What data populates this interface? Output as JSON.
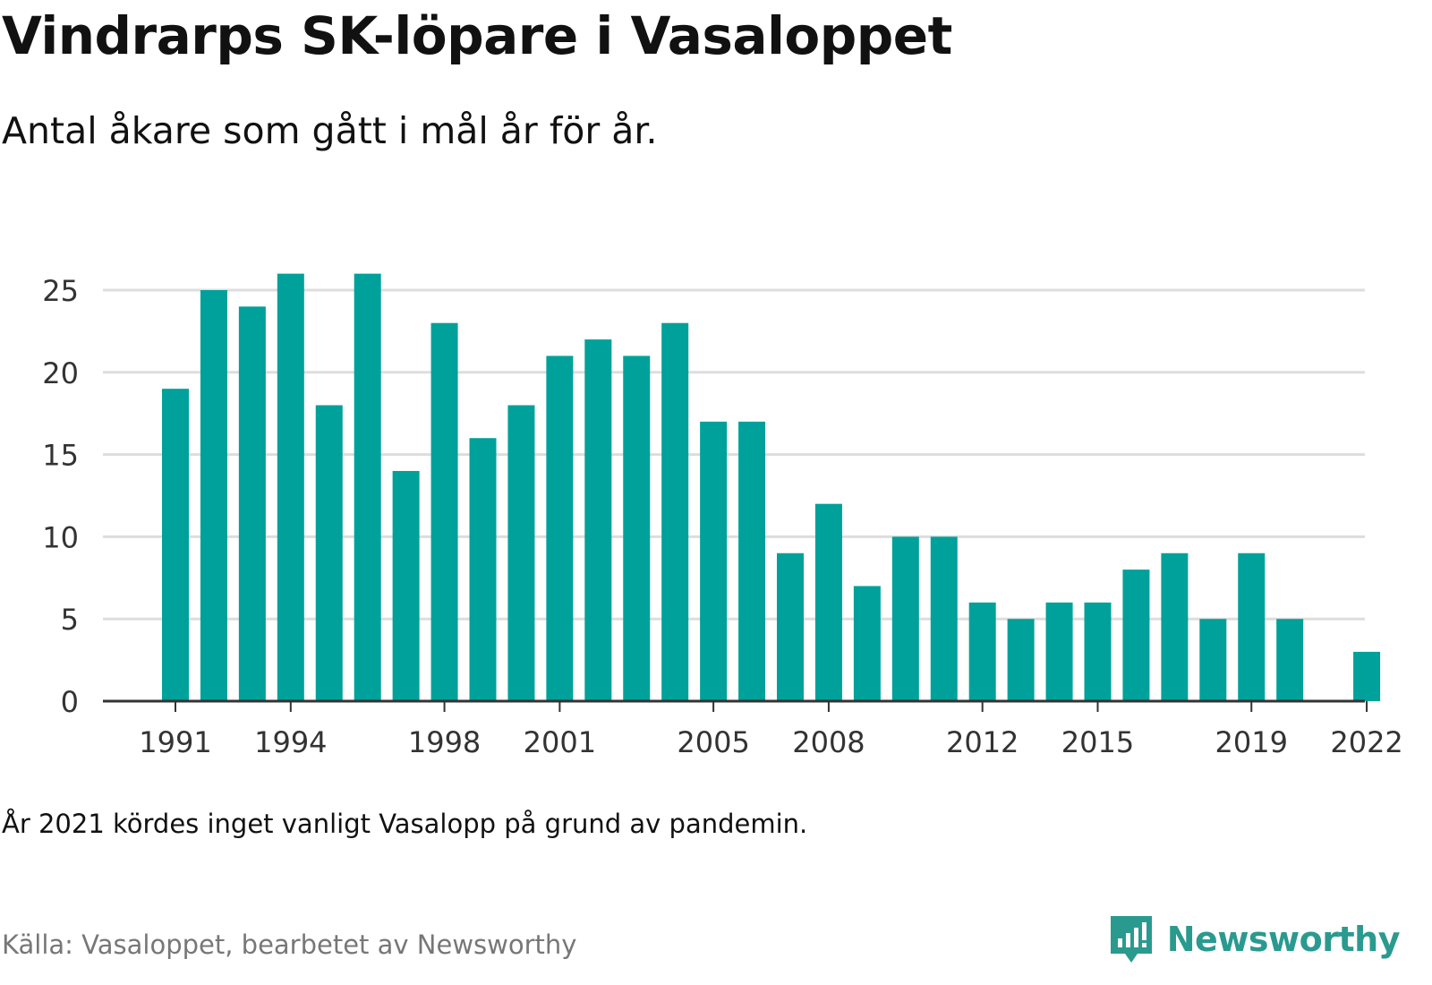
{
  "title": "Vindrarps SK-löpare i Vasaloppet",
  "subtitle": "Antal åkare som gått i mål år för år.",
  "note": "År 2021 kördes inget vanligt Vasalopp på grund av pandemin.",
  "source": "Källa: Vasaloppet, bearbetet av Newsworthy",
  "brand": {
    "name": "Newsworthy",
    "icon": "newsworthy-logo-icon",
    "color": "#2a9a8f"
  },
  "chart_data": {
    "type": "bar",
    "title": "",
    "xlabel": "",
    "ylabel": "",
    "categories": [
      "1991",
      "1992",
      "1993",
      "1994",
      "1995",
      "1996",
      "1997",
      "1998",
      "1999",
      "2000",
      "2001",
      "2002",
      "2003",
      "2004",
      "2005",
      "2006",
      "2007",
      "2008",
      "2009",
      "2010",
      "2011",
      "2012",
      "2013",
      "2014",
      "2015",
      "2016",
      "2017",
      "2018",
      "2019",
      "2020",
      "2021",
      "2022"
    ],
    "values": [
      19,
      25,
      24,
      26,
      18,
      26,
      14,
      23,
      16,
      18,
      21,
      22,
      21,
      23,
      17,
      17,
      9,
      12,
      7,
      10,
      10,
      6,
      5,
      6,
      6,
      8,
      9,
      5,
      9,
      5,
      null,
      3
    ],
    "xticks": [
      "1991",
      "1994",
      "1998",
      "2001",
      "2005",
      "2008",
      "2012",
      "2015",
      "2019",
      "2022"
    ],
    "yticks": [
      0,
      5,
      10,
      15,
      20,
      25
    ],
    "ylim": [
      0,
      26
    ],
    "grid": true,
    "bar_color": "#00a19a",
    "grid_color": "#dddddd",
    "axis_color": "#333333"
  }
}
